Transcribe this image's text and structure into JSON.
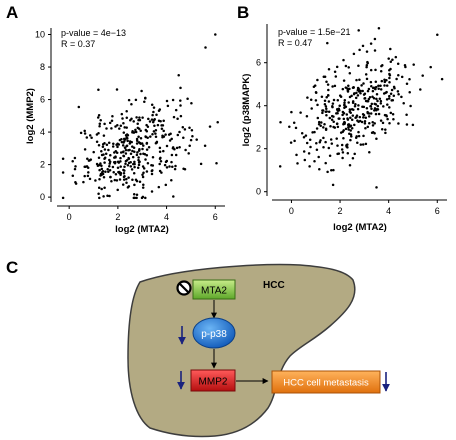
{
  "panels": {
    "a": {
      "letter": "A"
    },
    "b": {
      "letter": "B"
    },
    "c": {
      "letter": "C"
    }
  },
  "chart_data": [
    {
      "type": "scatter",
      "panel": "A",
      "xlabel": "log2 (MTA2)",
      "ylabel": "log2 (MMP2)",
      "xlim": [
        -0.5,
        6.4
      ],
      "ylim": [
        -0.3,
        10.4
      ],
      "xticks": [
        0,
        2,
        4,
        6
      ],
      "yticks": [
        0,
        2,
        4,
        6,
        8,
        10
      ],
      "annotations": [
        "p-value = 4e−13",
        "R = 0.37"
      ],
      "x_mean": 2.6,
      "x_sd": 1.15,
      "y_mean": 2.9,
      "y_sd": 1.45,
      "r": 0.37,
      "n": 400,
      "outliers": [
        [
          6.0,
          10.0
        ],
        [
          5.6,
          9.2
        ],
        [
          4.5,
          7.5
        ],
        [
          1.2,
          6.6
        ],
        [
          6.1,
          4.6
        ]
      ]
    },
    {
      "type": "scatter",
      "panel": "B",
      "xlabel": "log2 (MTA2)",
      "ylabel": "log2 (p38MAPK)",
      "xlim": [
        -0.8,
        6.4
      ],
      "ylim": [
        -0.2,
        7.8
      ],
      "xticks": [
        0,
        2,
        4,
        6
      ],
      "yticks": [
        0,
        2,
        4,
        6
      ],
      "annotations": [
        "p-value = 1.5e−21",
        "R = 0.47"
      ],
      "x_mean": 2.6,
      "x_sd": 1.15,
      "y_mean": 3.9,
      "y_sd": 1.25,
      "r": 0.47,
      "n": 400,
      "outliers": [
        [
          6.0,
          7.3
        ],
        [
          3.6,
          7.6
        ],
        [
          3.5,
          0.2
        ],
        [
          0.0,
          3.7
        ],
        [
          5.4,
          5.4
        ]
      ]
    }
  ],
  "diagram": {
    "organ_label": "HCC",
    "mta2": "MTA2",
    "p38": "p-p38",
    "mmp2": "MMP2",
    "outcome": "HCC cell metastasis",
    "colors": {
      "liver": "#b3aa83",
      "mta2": "#8cc63e",
      "p38": "#1f78d1",
      "mmp2": "#d81e1e",
      "outcome": "#f28b1f",
      "arrow_down": "#1a237e"
    }
  }
}
